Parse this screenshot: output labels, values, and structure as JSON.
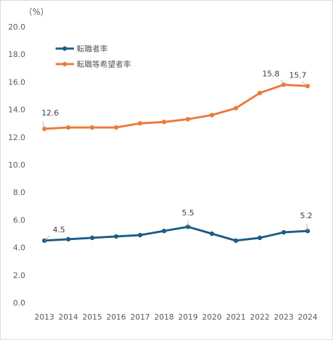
{
  "chart_data": {
    "type": "line",
    "unit_label": "（%）",
    "categories": [
      "2013",
      "2014",
      "2015",
      "2016",
      "2017",
      "2018",
      "2019",
      "2020",
      "2021",
      "2022",
      "2023",
      "2024"
    ],
    "ylim": [
      0,
      20
    ],
    "yticks": [
      "0.0",
      "2.0",
      "4.0",
      "6.0",
      "8.0",
      "10.0",
      "12.0",
      "14.0",
      "16.0",
      "18.0",
      "20.0"
    ],
    "grid": false,
    "legend_position": "top-left",
    "series": [
      {
        "name": "転職者率",
        "color": "#1f5c85",
        "values": [
          4.5,
          4.6,
          4.7,
          4.8,
          4.9,
          5.2,
          5.5,
          5.0,
          4.5,
          4.7,
          5.1,
          5.2
        ],
        "data_labels": [
          {
            "index": 0,
            "text": "4.5"
          },
          {
            "index": 6,
            "text": "5.5"
          },
          {
            "index": 11,
            "text": "5.2"
          }
        ]
      },
      {
        "name": "転職等希望者率",
        "color": "#ec7a3a",
        "values": [
          12.6,
          12.7,
          12.7,
          12.7,
          13.0,
          13.1,
          13.3,
          13.6,
          14.1,
          15.2,
          15.8,
          15.7
        ],
        "data_labels": [
          {
            "index": 0,
            "text": "12.6"
          },
          {
            "index": 10,
            "text": "15.8"
          },
          {
            "index": 11,
            "text": "15.7"
          }
        ]
      }
    ]
  }
}
